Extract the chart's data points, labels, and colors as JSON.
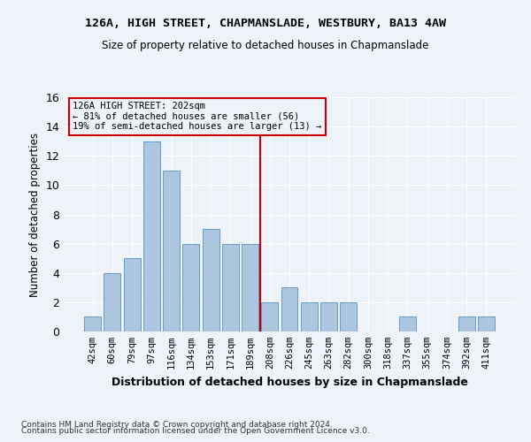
{
  "title1": "126A, HIGH STREET, CHAPMANSLADE, WESTBURY, BA13 4AW",
  "title2": "Size of property relative to detached houses in Chapmanslade",
  "xlabel": "Distribution of detached houses by size in Chapmanslade",
  "ylabel": "Number of detached properties",
  "categories": [
    "42sqm",
    "60sqm",
    "79sqm",
    "97sqm",
    "116sqm",
    "134sqm",
    "153sqm",
    "171sqm",
    "189sqm",
    "208sqm",
    "226sqm",
    "245sqm",
    "263sqm",
    "282sqm",
    "300sqm",
    "318sqm",
    "337sqm",
    "355sqm",
    "374sqm",
    "392sqm",
    "411sqm"
  ],
  "values": [
    1,
    4,
    5,
    13,
    11,
    6,
    7,
    6,
    6,
    2,
    3,
    2,
    2,
    2,
    0,
    0,
    1,
    0,
    0,
    1,
    1
  ],
  "bar_color": "#adc6e0",
  "bar_edge_color": "#6699cc",
  "vline_x": 8.5,
  "vline_color": "#cc0000",
  "ylim": [
    0,
    16
  ],
  "yticks": [
    0,
    2,
    4,
    6,
    8,
    10,
    12,
    14,
    16
  ],
  "annotation_title": "126A HIGH STREET: 202sqm",
  "annotation_line1": "← 81% of detached houses are smaller (56)",
  "annotation_line2": "19% of semi-detached houses are larger (13) →",
  "annotation_box_color": "#cc0000",
  "footer1": "Contains HM Land Registry data © Crown copyright and database right 2024.",
  "footer2": "Contains public sector information licensed under the Open Government Licence v3.0.",
  "background_color": "#eef2f9",
  "grid_color": "#ffffff"
}
